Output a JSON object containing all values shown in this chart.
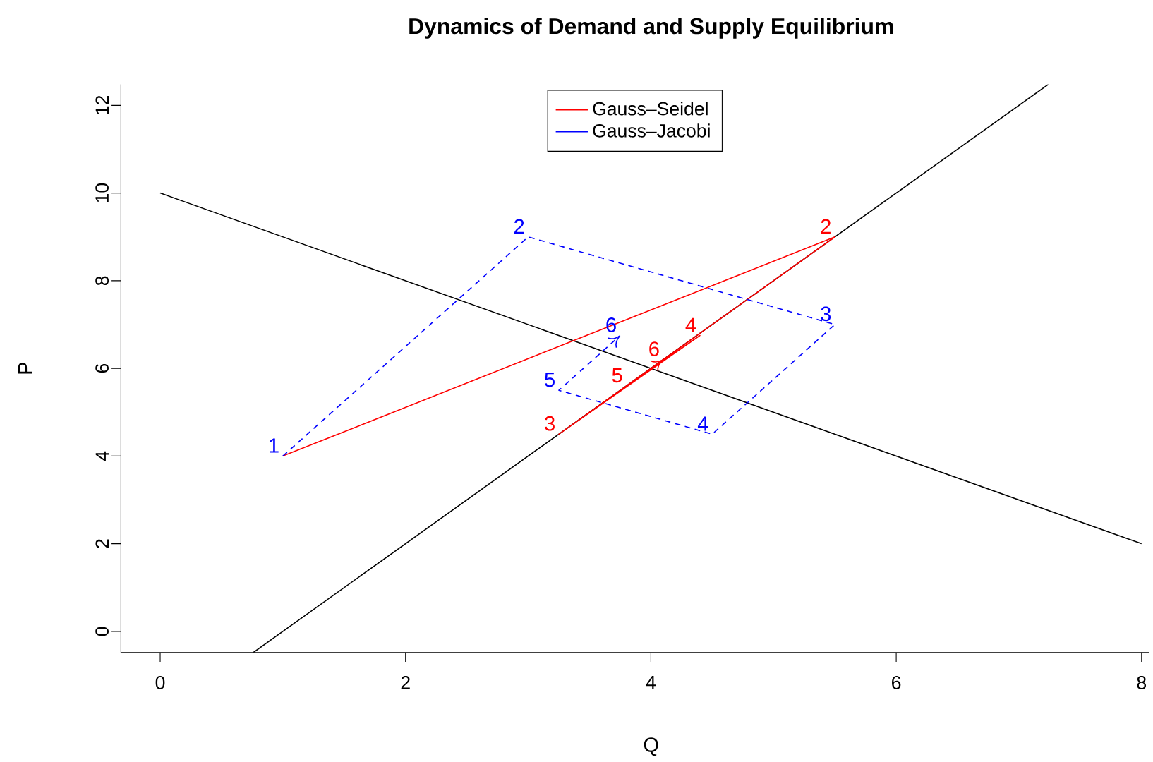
{
  "chart_data": {
    "type": "line",
    "title": "Dynamics of Demand and Supply Equilibrium",
    "xlabel": "Q",
    "ylabel": "P",
    "xlim": [
      -0.32,
      8.06
    ],
    "ylim": [
      -0.48,
      12.48
    ],
    "xticks": [
      0,
      2,
      4,
      6,
      8
    ],
    "yticks": [
      0,
      2,
      4,
      6,
      8,
      10,
      12
    ],
    "legend": "top",
    "marker": "none",
    "series": [
      {
        "color": "#000000",
        "x": [
          0,
          8
        ],
        "values": [
          10,
          2
        ]
      },
      {
        "color": "#000000",
        "x": [
          0.76,
          7.24
        ],
        "values": [
          -0.48,
          12.48
        ]
      },
      {
        "name": "Gauss–Seidel",
        "color": "#ff0000",
        "x": [
          1,
          5.5,
          3.25,
          4.4,
          3.8,
          4.1
        ],
        "values": [
          4,
          9,
          4.5,
          6.75,
          5.6,
          6.2
        ]
      },
      {
        "name": "Gauss–Jacobi",
        "color": "#0000ff",
        "line_style": "dashed",
        "x": [
          1,
          3,
          5.5,
          4.5,
          3.25,
          3.75
        ],
        "values": [
          4,
          9,
          7,
          4.5,
          5.5,
          6.75
        ]
      }
    ],
    "annotations": [
      {
        "text": "1",
        "x": 1,
        "y": 4
      },
      {
        "text": "2",
        "x": 5.5,
        "y": 9
      },
      {
        "text": "3",
        "x": 3.25,
        "y": 4.5
      },
      {
        "text": "4",
        "x": 4.4,
        "y": 6.75
      },
      {
        "text": "5",
        "x": 3.8,
        "y": 5.6
      },
      {
        "text": "6",
        "x": 4.1,
        "y": 6.2
      },
      {
        "text": "2",
        "x": 3,
        "y": 9
      },
      {
        "text": "3",
        "x": 5.5,
        "y": 7
      },
      {
        "text": "4",
        "x": 4.5,
        "y": 4.5
      },
      {
        "text": "5",
        "x": 3.25,
        "y": 5.5
      },
      {
        "text": "6",
        "x": 3.75,
        "y": 6.75
      }
    ]
  }
}
